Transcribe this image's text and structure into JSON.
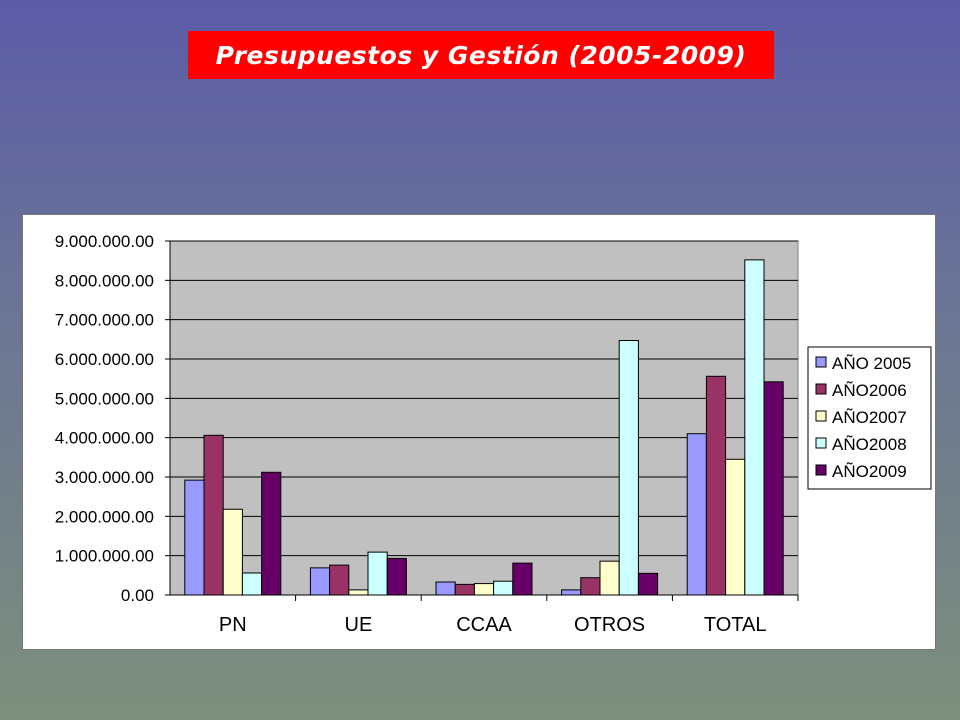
{
  "title": "Presupuestos y Gestión (2005-2009)",
  "chart_data": {
    "type": "bar",
    "title": "",
    "xlabel": "",
    "ylabel": "",
    "categories": [
      "PN",
      "UE",
      "CCAA",
      "OTROS",
      "TOTAL"
    ],
    "ylim": [
      0,
      9000000
    ],
    "yticks": [
      0,
      1000000,
      2000000,
      3000000,
      4000000,
      5000000,
      6000000,
      7000000,
      8000000,
      9000000
    ],
    "ytick_labels": [
      "0.00",
      "1.000.000.00",
      "2.000.000.00",
      "3.000.000.00",
      "4.000.000.00",
      "5.000.000.00",
      "6.000.000.00",
      "7.000.000.00",
      "8.000.000.00",
      "9.000.000.00"
    ],
    "grid": true,
    "plot_background": "#c0c0c0",
    "legend_position": "right",
    "series": [
      {
        "name": "AÑO 2005",
        "color": "#9999ff",
        "values": [
          2920000,
          690000,
          330000,
          130000,
          4100000
        ]
      },
      {
        "name": "AÑO2006",
        "color": "#993366",
        "values": [
          4060000,
          760000,
          270000,
          440000,
          5560000
        ]
      },
      {
        "name": "AÑO2007",
        "color": "#ffffcc",
        "values": [
          2180000,
          130000,
          290000,
          860000,
          3450000
        ]
      },
      {
        "name": "AÑO2008",
        "color": "#ccffff",
        "values": [
          560000,
          1090000,
          350000,
          6470000,
          8520000
        ]
      },
      {
        "name": "AÑO2009",
        "color": "#660066",
        "values": [
          3120000,
          930000,
          810000,
          550000,
          5420000
        ]
      }
    ]
  }
}
